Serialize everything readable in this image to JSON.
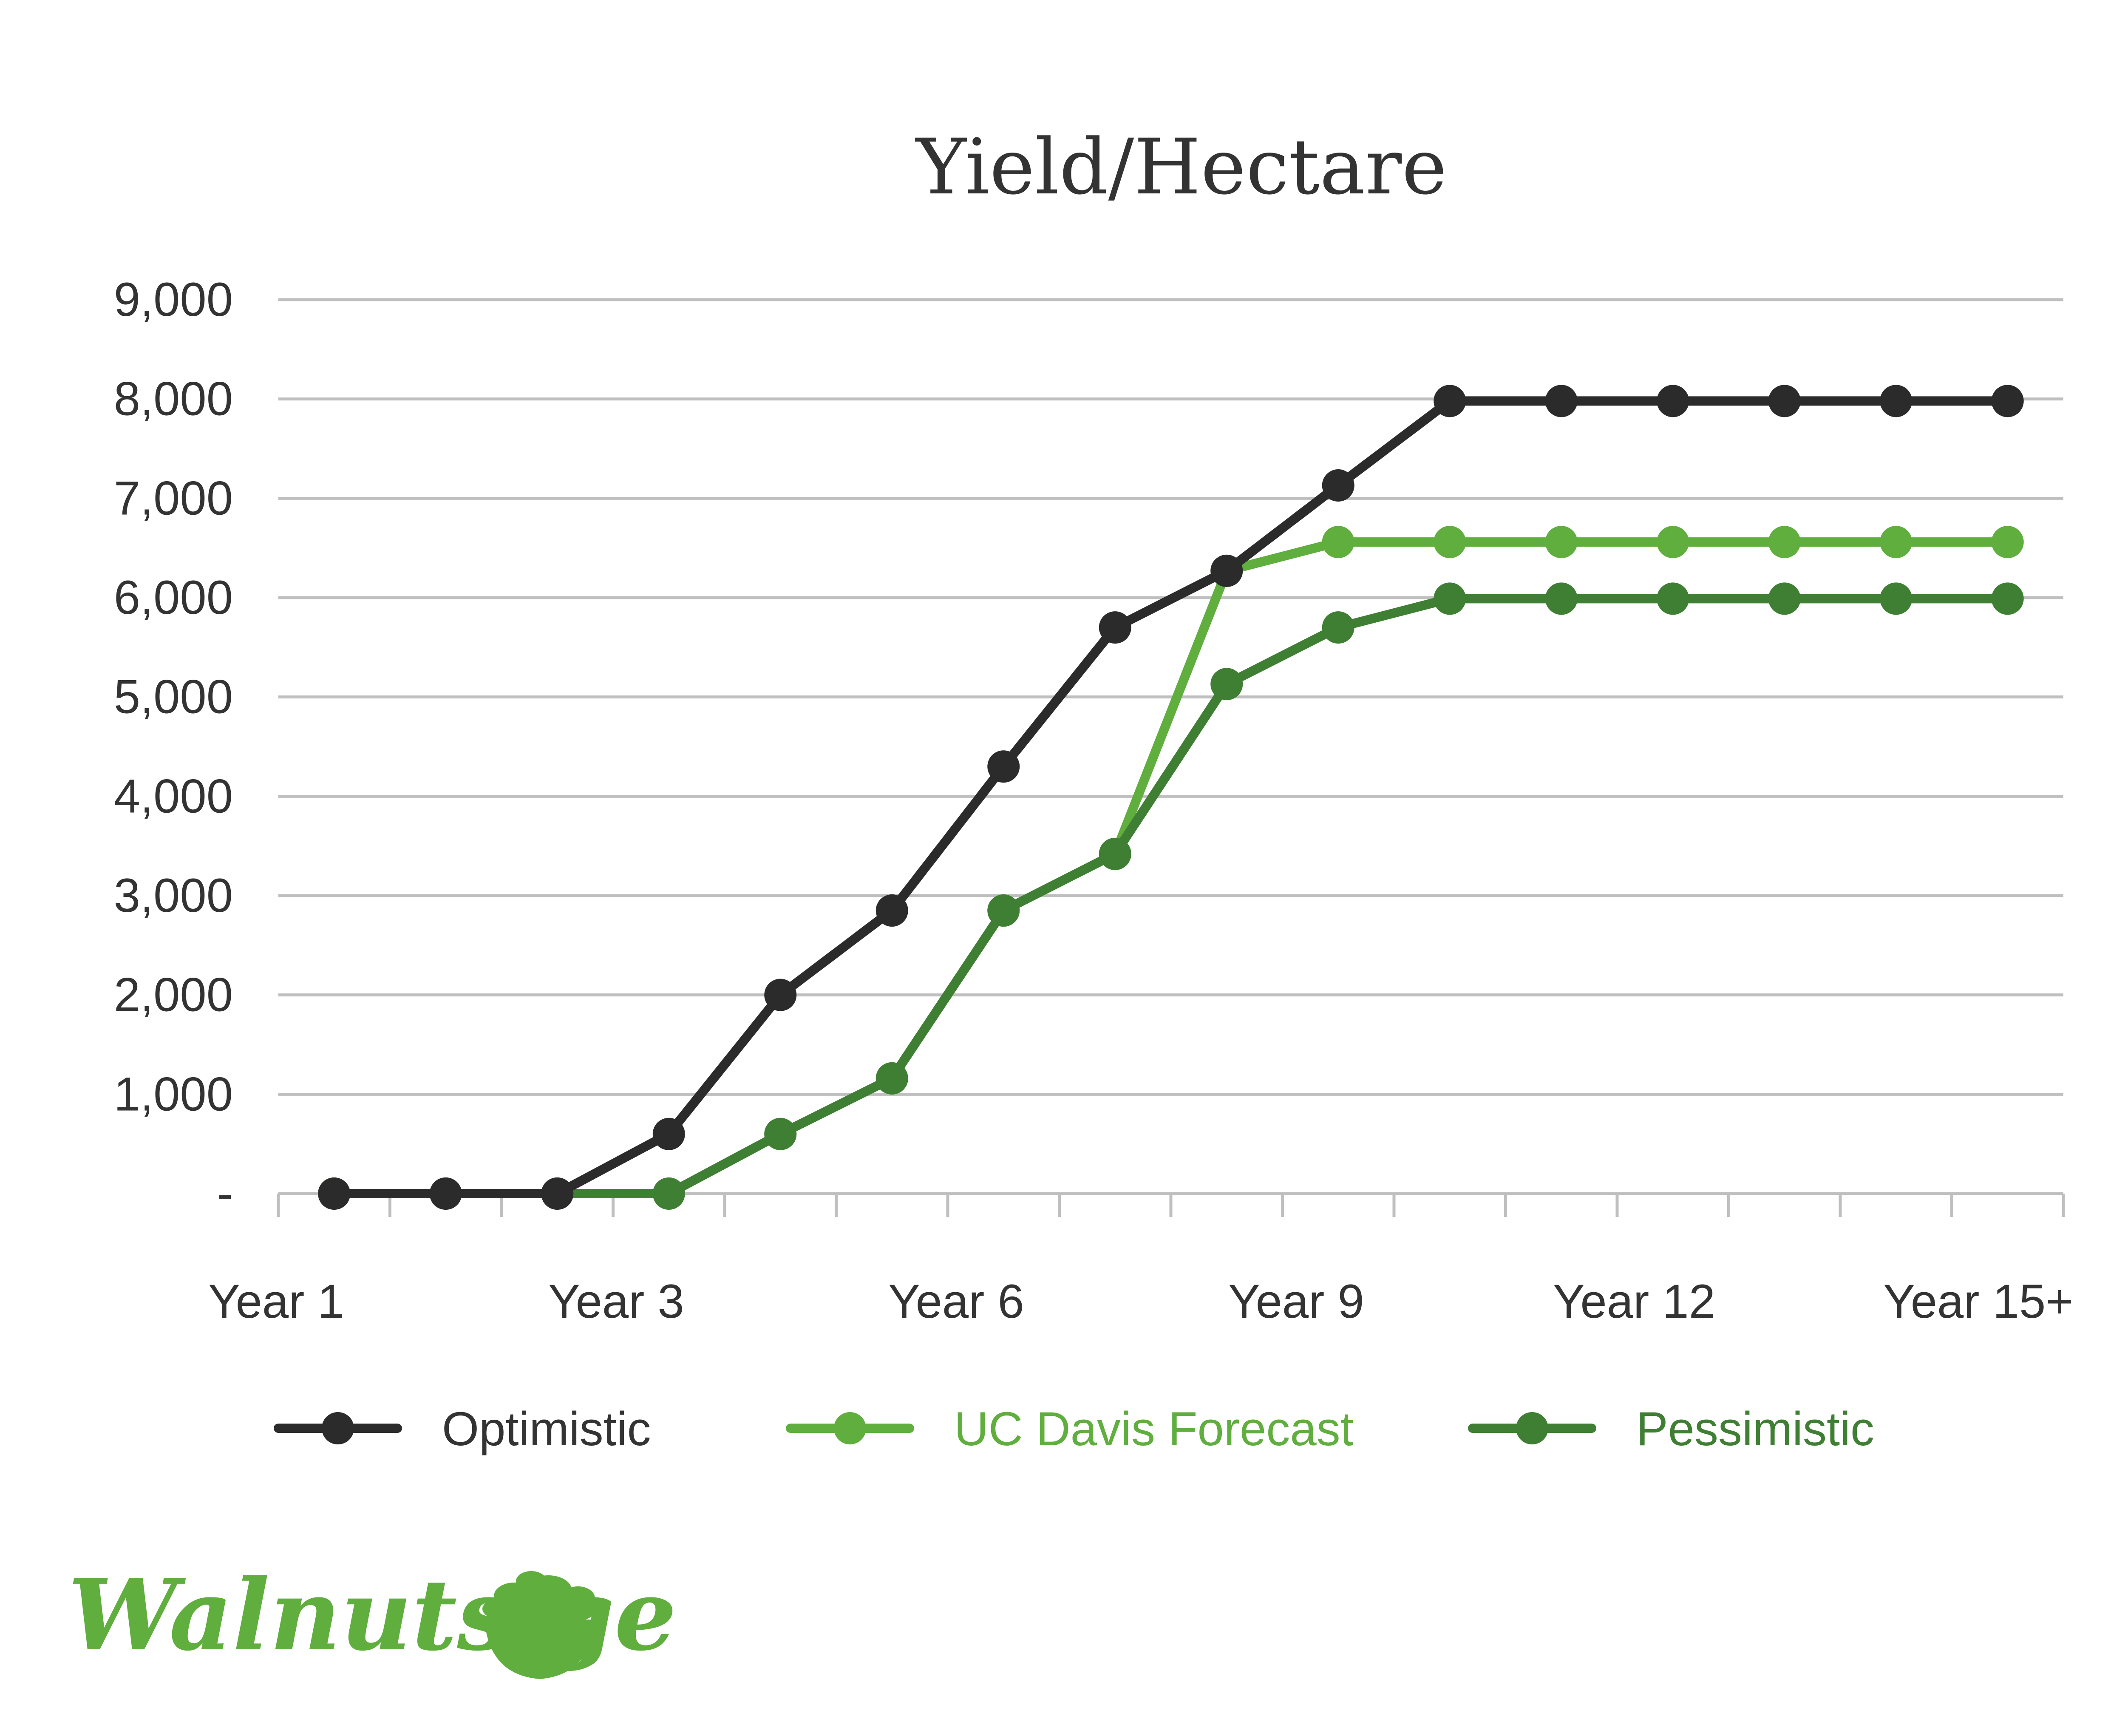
{
  "chart_data": {
    "type": "line",
    "title": "Yield/Hectare",
    "xlabel": "",
    "ylabel": "",
    "ylim": [
      0,
      9000
    ],
    "yticks": [
      0,
      1000,
      2000,
      3000,
      4000,
      5000,
      6000,
      7000,
      8000,
      9000
    ],
    "ytick_labels": [
      "-",
      "1,000",
      "2,000",
      "3,000",
      "4,000",
      "5,000",
      "6,000",
      "7,000",
      "8,000",
      "9,000"
    ],
    "x": [
      1,
      2,
      3,
      4,
      5,
      6,
      7,
      8,
      9,
      10,
      11,
      12,
      13,
      14,
      15,
      16
    ],
    "xtick_labels": [
      {
        "index": 0,
        "label": "Year 1"
      },
      {
        "index": 3,
        "label": "Year 3"
      },
      {
        "index": 6,
        "label": "Year 6"
      },
      {
        "index": 9,
        "label": "Year 9"
      },
      {
        "index": 12,
        "label": "Year 12"
      },
      {
        "index": 15,
        "label": "Year 15+"
      }
    ],
    "grid": true,
    "legend_position": "bottom",
    "series": [
      {
        "name": "Optimistic",
        "color": "#2b2b2b",
        "values": [
          0,
          0,
          0,
          600,
          2000,
          2850,
          4300,
          5700,
          6270,
          7130,
          7980,
          7980,
          7980,
          7980,
          7980,
          7980
        ]
      },
      {
        "name": "UC Davis Forecast",
        "color": "#5fae3e",
        "values": [
          0,
          0,
          0,
          0,
          600,
          1160,
          2850,
          3420,
          6270,
          6560,
          6560,
          6560,
          6560,
          6560,
          6560,
          6560
        ]
      },
      {
        "name": "Pessimistic",
        "color": "#3f7f33",
        "values": [
          0,
          0,
          0,
          0,
          600,
          1160,
          2850,
          3420,
          5130,
          5700,
          5990,
          5990,
          5990,
          5990,
          5990,
          5990
        ]
      }
    ]
  },
  "brand": {
    "name": "Walnuts.ge",
    "color": "#5fae3e",
    "icon": "walnut-bowl-icon"
  }
}
